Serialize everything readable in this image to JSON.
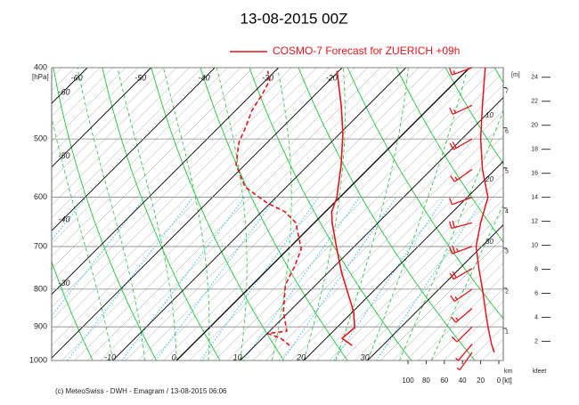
{
  "chart_data": {
    "type": "emagram",
    "title": "13-08-2015  00Z",
    "legend_label": "COSMO-7 Forecast for ZUERICH   +09h",
    "footer": "(c) MeteoSwiss - DWH - Emagram  /  13-08-2015 06:06",
    "y_label": "[hPa]",
    "ylim": [
      400,
      1000
    ],
    "yticks": [
      400,
      500,
      600,
      700,
      800,
      900,
      1000
    ],
    "log_y": true,
    "xlim": [
      -19.6,
      51.3
    ],
    "xticks": [
      -60,
      -50,
      -40,
      -30,
      -20,
      -10,
      0,
      10,
      20,
      30
    ],
    "skew": 1,
    "temperature": {
      "color": "#e8141b",
      "pressure": [
        954,
        933,
        902,
        858,
        811,
        757,
        706,
        650,
        628,
        601,
        542,
        492,
        452,
        404
      ],
      "values": [
        25.2,
        22.5,
        22.8,
        20.1,
        16.4,
        11.9,
        7.7,
        2.8,
        1.0,
        -0.4,
        -4.9,
        -9.5,
        -14.0,
        -20.3
      ]
    },
    "dewpoint": {
      "color": "#e8141b",
      "pressure": [
        954,
        933,
        919,
        912,
        858,
        789,
        746,
        706,
        650,
        628,
        611,
        581,
        542,
        505,
        485,
        458,
        434,
        416,
        404
      ],
      "values": [
        15.4,
        12.9,
        10.1,
        12.7,
        9.1,
        5.2,
        3.8,
        2.1,
        -2.9,
        -6.3,
        -10.5,
        -16.5,
        -21.4,
        -24.5,
        -25.6,
        -27.4,
        -28.4,
        -29.4,
        -31.2
      ]
    },
    "height_km": {
      "label": "[m]",
      "unit_label": "km",
      "lim": [
        0.2,
        7.5
      ],
      "ticks": [
        1,
        2,
        3,
        4,
        5,
        6,
        7
      ]
    },
    "height_kfeet": {
      "label": "kfeet",
      "lim": [
        0.4,
        24.8
      ],
      "ticks": [
        2,
        4,
        6,
        8,
        10,
        12,
        14,
        16,
        18,
        20,
        22,
        24
      ]
    },
    "wind": {
      "color": "#e8141b",
      "label": "[kt]",
      "xlim": [
        100,
        0
      ],
      "xticks": [
        100,
        80,
        60,
        40,
        20,
        0
      ],
      "pressure": [
        400,
        450,
        500,
        550,
        600,
        650,
        700,
        750,
        800,
        850,
        900,
        950,
        975
      ],
      "speed": [
        15,
        18,
        20,
        18,
        12,
        20,
        25,
        22,
        18,
        15,
        12,
        8,
        5
      ],
      "direction": [
        250,
        245,
        240,
        235,
        250,
        255,
        250,
        240,
        235,
        230,
        225,
        220,
        215
      ]
    },
    "annotations": [
      "10",
      "20",
      "30"
    ]
  }
}
